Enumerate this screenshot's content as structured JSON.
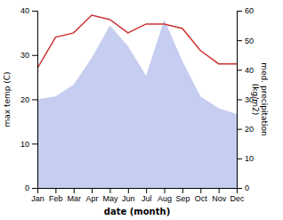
{
  "chart_data": {
    "type": "line",
    "categories": [
      "Jan",
      "Feb",
      "Mar",
      "Apr",
      "May",
      "Jun",
      "Jul",
      "Aug",
      "Sep",
      "Oct",
      "Nov",
      "Dec"
    ],
    "series": [
      {
        "type": "area",
        "axis": "y2",
        "color": "#c5cef0",
        "values": [
          30,
          31,
          35,
          44,
          55,
          48,
          38,
          57,
          43,
          31,
          27,
          25
        ]
      },
      {
        "type": "line",
        "color": "#cc3333",
        "values": [
          27,
          34,
          35,
          39,
          38,
          35,
          37,
          37,
          36,
          31,
          28,
          28
        ]
      }
    ],
    "xlabel": "date (month)",
    "ylabel": "max temp (C)",
    "y2label": "med. precipitation\n(kg/m2)",
    "ylim": [
      0,
      40
    ],
    "yticks": [
      0,
      10,
      20,
      30,
      40
    ],
    "y2lim": [
      0,
      60
    ],
    "y2ticks": [
      0,
      10,
      20,
      30,
      40,
      50,
      60
    ]
  }
}
